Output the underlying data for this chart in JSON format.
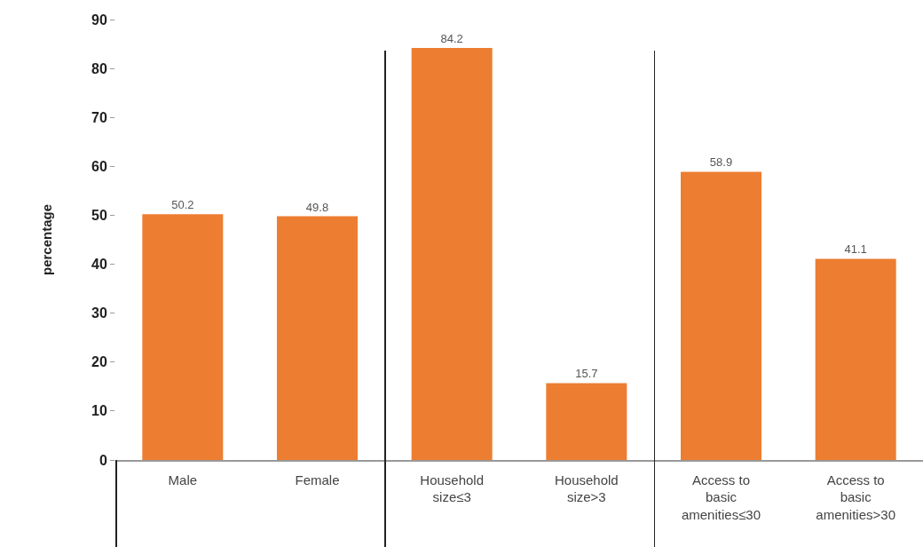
{
  "chart_data": {
    "type": "bar",
    "ylabel": "percentage",
    "categories": [
      "Male",
      "Female",
      "Household size≤3",
      "Household size>3",
      "Access to basic amenities≤30",
      "Access to basic amenities>30"
    ],
    "values": [
      50.2,
      49.8,
      84.2,
      15.7,
      58.9,
      41.1
    ],
    "color": "#ed7d31",
    "ylim": [
      0,
      90
    ],
    "yticks": [
      0,
      10,
      20,
      30,
      40,
      50,
      60,
      70,
      80,
      90
    ],
    "grid": false,
    "data_labels": true
  }
}
